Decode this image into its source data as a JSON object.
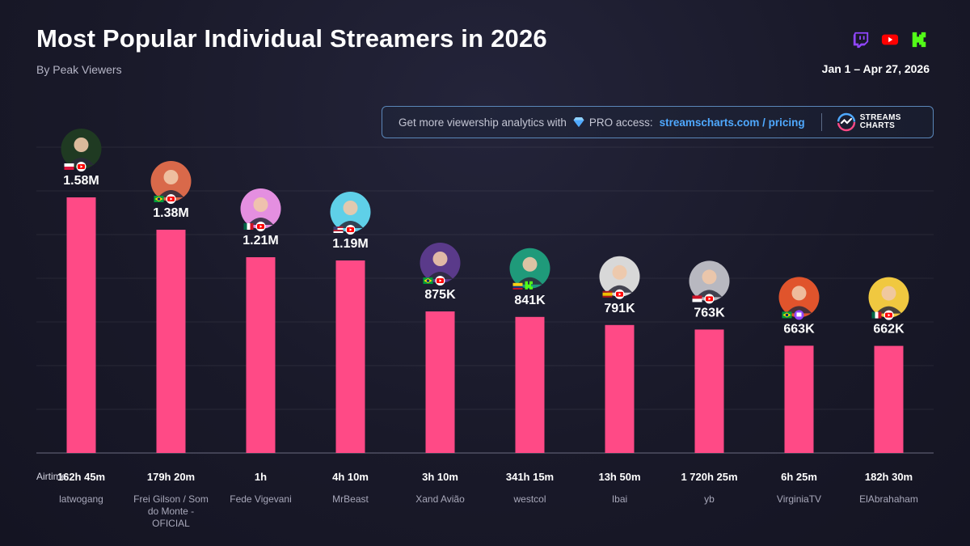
{
  "header": {
    "title": "Most Popular Individual Streamers in 2026",
    "subtitle": "By Peak Viewers",
    "date_range": "Jan 1 – Apr 27, 2026"
  },
  "platforms": [
    "twitch-icon",
    "youtube-icon",
    "kick-icon"
  ],
  "promo": {
    "text": "Get more viewership analytics with",
    "pro": "PRO access:",
    "link": "streamscharts.com / pricing",
    "brand_line1": "STREAMS",
    "brand_line2": "CHARTS"
  },
  "airtime_label": "Airtime:",
  "colors": {
    "bar": "#ff4a86",
    "accent": "#4fa9ff",
    "background": "#191929"
  },
  "chart_data": {
    "type": "bar",
    "title": "Most Popular Individual Streamers in 2026",
    "subtitle": "By Peak Viewers",
    "ylim": [
      0,
      1800000
    ],
    "grid": true,
    "categories": [
      "latwogang",
      "Frei Gilson / Som do Monte - OFICIAL",
      "Fede Vigevani",
      "MrBeast",
      "Xand Avião",
      "westcol",
      "Ibai",
      "yb",
      "VirginiaTV",
      "ElAbrahaham"
    ],
    "values": [
      1580000,
      1380000,
      1210000,
      1190000,
      875000,
      841000,
      791000,
      763000,
      663000,
      662000
    ],
    "value_labels": [
      "1.58M",
      "1.38M",
      "1.21M",
      "1.19M",
      "875K",
      "841K",
      "791K",
      "763K",
      "663K",
      "662K"
    ],
    "airtime": [
      "162h 45m",
      "179h 20m",
      "1h",
      "4h 10m",
      "3h 10m",
      "341h 15m",
      "13h 50m",
      "1 720h 25m",
      "6h 25m",
      "182h 30m"
    ],
    "name_lines": [
      [
        "latwogang"
      ],
      [
        "Frei Gilson / Som",
        "do Monte -",
        "OFICIAL"
      ],
      [
        "Fede Vigevani"
      ],
      [
        "MrBeast"
      ],
      [
        "Xand Avião"
      ],
      [
        "westcol"
      ],
      [
        "Ibai"
      ],
      [
        "yb"
      ],
      [
        "VirginiaTV"
      ],
      [
        "ElAbrahaham"
      ]
    ],
    "flags": [
      "poland",
      "brazil",
      "mexico",
      "usa",
      "brazil",
      "colombia",
      "spain",
      "indonesia",
      "brazil",
      "mexico"
    ],
    "platforms": [
      [
        "youtube"
      ],
      [
        "youtube"
      ],
      [
        "youtube"
      ],
      [
        "youtube"
      ],
      [
        "youtube"
      ],
      [
        "kick"
      ],
      [
        "youtube"
      ],
      [
        "youtube"
      ],
      [
        "twitch"
      ],
      [
        "youtube"
      ]
    ],
    "avatar_colors": [
      "#1f3a22",
      "#d9694a",
      "#e48fe0",
      "#5fd0e8",
      "#5a3a8a",
      "#1f9a7a",
      "#d8d8d8",
      "#b8b8c0",
      "#e0542c",
      "#f0c840"
    ]
  }
}
